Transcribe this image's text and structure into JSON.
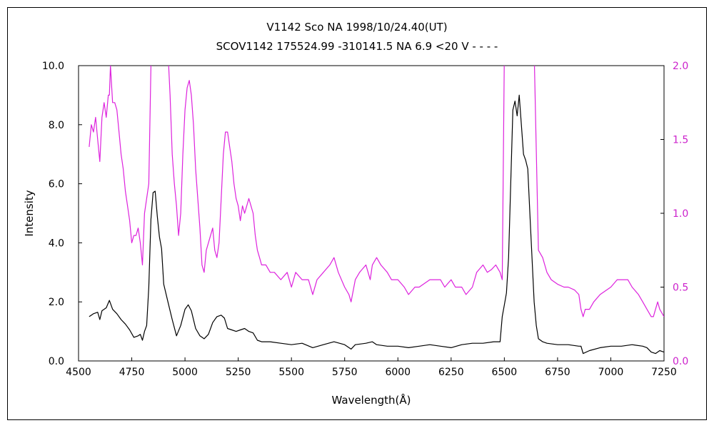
{
  "chart_data": {
    "type": "line",
    "title": "V1142 Sco     NA     1998/10/24.40(UT)",
    "subtitle": "SCOV1142 175524.99 -310141.5 NA 6.9 <20 V - - - -",
    "xlabel": "Wavelength(Å)",
    "ylabel": "Intensity",
    "xlim": [
      4500,
      7250
    ],
    "ylim_left": [
      0,
      10
    ],
    "ylim_right": [
      0,
      2
    ],
    "x_ticks": [
      "4500",
      "4750",
      "5000",
      "5250",
      "5500",
      "5750",
      "6000",
      "6250",
      "6500",
      "6750",
      "7000",
      "7250"
    ],
    "y_left_ticks": [
      "0.0",
      "2.0",
      "4.0",
      "6.0",
      "8.0",
      "10.0"
    ],
    "y_right_ticks": [
      "0.0",
      "0.5",
      "1.0",
      "1.5",
      "2.0"
    ],
    "grid": false,
    "legend": "none",
    "series": [
      {
        "axis": "left",
        "color": "#000000",
        "x": [
          4550,
          4570,
          4590,
          4600,
          4610,
          4630,
          4645,
          4660,
          4680,
          4700,
          4720,
          4740,
          4760,
          4780,
          4790,
          4800,
          4810,
          4820,
          4830,
          4840,
          4850,
          4860,
          4870,
          4880,
          4890,
          4900,
          4920,
          4940,
          4960,
          4980,
          5000,
          5015,
          5030,
          5050,
          5070,
          5090,
          5110,
          5130,
          5150,
          5170,
          5185,
          5200,
          5220,
          5240,
          5260,
          5280,
          5300,
          5320,
          5340,
          5360,
          5400,
          5450,
          5500,
          5550,
          5600,
          5650,
          5700,
          5750,
          5780,
          5800,
          5850,
          5880,
          5900,
          5950,
          6000,
          6050,
          6100,
          6150,
          6200,
          6250,
          6300,
          6350,
          6400,
          6450,
          6480,
          6490,
          6500,
          6510,
          6520,
          6530,
          6540,
          6550,
          6560,
          6570,
          6580,
          6590,
          6600,
          6610,
          6620,
          6630,
          6640,
          6650,
          6660,
          6680,
          6700,
          6750,
          6800,
          6850,
          6860,
          6870,
          6900,
          6950,
          7000,
          7050,
          7100,
          7150,
          7170,
          7190,
          7210,
          7230,
          7250
        ],
        "y": [
          1.5,
          1.6,
          1.65,
          1.4,
          1.7,
          1.8,
          2.05,
          1.75,
          1.6,
          1.4,
          1.25,
          1.05,
          0.8,
          0.85,
          0.9,
          0.7,
          1.0,
          1.2,
          2.5,
          4.8,
          5.7,
          5.75,
          4.9,
          4.2,
          3.8,
          2.6,
          2.0,
          1.4,
          0.85,
          1.2,
          1.75,
          1.9,
          1.7,
          1.1,
          0.85,
          0.75,
          0.9,
          1.3,
          1.5,
          1.55,
          1.45,
          1.1,
          1.05,
          1.0,
          1.05,
          1.1,
          1.0,
          0.95,
          0.7,
          0.65,
          0.65,
          0.6,
          0.55,
          0.6,
          0.45,
          0.55,
          0.65,
          0.55,
          0.4,
          0.55,
          0.6,
          0.65,
          0.55,
          0.5,
          0.5,
          0.45,
          0.5,
          0.55,
          0.5,
          0.45,
          0.55,
          0.6,
          0.6,
          0.65,
          0.65,
          1.5,
          1.9,
          2.3,
          3.5,
          6.0,
          8.5,
          8.8,
          8.3,
          9.0,
          8.0,
          7.0,
          6.8,
          6.5,
          5.0,
          3.5,
          2.0,
          1.2,
          0.75,
          0.65,
          0.6,
          0.55,
          0.55,
          0.5,
          0.5,
          0.25,
          0.35,
          0.45,
          0.5,
          0.5,
          0.55,
          0.5,
          0.45,
          0.3,
          0.25,
          0.35,
          0.3
        ]
      },
      {
        "axis": "right",
        "color": "#dd22dd",
        "x": [
          4550,
          4560,
          4570,
          4580,
          4590,
          4600,
          4610,
          4620,
          4630,
          4640,
          4645,
          4650,
          4660,
          4670,
          4680,
          4690,
          4700,
          4710,
          4720,
          4730,
          4740,
          4750,
          4760,
          4770,
          4780,
          4790,
          4800,
          4810,
          4820,
          4830,
          4840,
          4850,
          4860,
          4900,
          4920,
          4930,
          4940,
          4950,
          4960,
          4970,
          4980,
          4990,
          5000,
          5010,
          5020,
          5030,
          5040,
          5050,
          5060,
          5070,
          5080,
          5090,
          5100,
          5110,
          5120,
          5130,
          5140,
          5150,
          5160,
          5170,
          5180,
          5190,
          5200,
          5210,
          5220,
          5230,
          5240,
          5250,
          5260,
          5270,
          5280,
          5290,
          5300,
          5310,
          5320,
          5330,
          5340,
          5350,
          5360,
          5380,
          5400,
          5420,
          5450,
          5480,
          5500,
          5520,
          5550,
          5580,
          5600,
          5620,
          5650,
          5680,
          5700,
          5720,
          5750,
          5770,
          5780,
          5800,
          5820,
          5850,
          5870,
          5880,
          5900,
          5920,
          5950,
          5970,
          6000,
          6030,
          6050,
          6080,
          6100,
          6150,
          6180,
          6200,
          6220,
          6250,
          6270,
          6300,
          6320,
          6350,
          6370,
          6400,
          6420,
          6440,
          6460,
          6480,
          6490,
          6500,
          6640,
          6660,
          6680,
          6700,
          6720,
          6750,
          6780,
          6800,
          6830,
          6850,
          6860,
          6870,
          6880,
          6900,
          6920,
          6950,
          6980,
          7000,
          7030,
          7060,
          7080,
          7100,
          7130,
          7150,
          7170,
          7190,
          7200,
          7210,
          7220,
          7230,
          7250
        ],
        "y": [
          1.45,
          1.6,
          1.55,
          1.65,
          1.5,
          1.35,
          1.65,
          1.75,
          1.65,
          1.8,
          1.8,
          2.0,
          1.75,
          1.75,
          1.7,
          1.55,
          1.4,
          1.3,
          1.15,
          1.05,
          0.95,
          0.8,
          0.85,
          0.85,
          0.9,
          0.8,
          0.65,
          1.0,
          1.1,
          1.2,
          2.0,
          2.1,
          2.1,
          2.1,
          2.1,
          1.8,
          1.4,
          1.2,
          1.05,
          0.85,
          1.0,
          1.4,
          1.7,
          1.85,
          1.9,
          1.8,
          1.6,
          1.3,
          1.1,
          0.9,
          0.65,
          0.6,
          0.75,
          0.8,
          0.85,
          0.9,
          0.75,
          0.7,
          0.8,
          1.1,
          1.4,
          1.55,
          1.55,
          1.45,
          1.35,
          1.2,
          1.1,
          1.05,
          0.95,
          1.05,
          1.0,
          1.05,
          1.1,
          1.05,
          1.0,
          0.85,
          0.75,
          0.7,
          0.65,
          0.65,
          0.6,
          0.6,
          0.55,
          0.6,
          0.5,
          0.6,
          0.55,
          0.55,
          0.45,
          0.55,
          0.6,
          0.65,
          0.7,
          0.6,
          0.5,
          0.45,
          0.4,
          0.55,
          0.6,
          0.65,
          0.55,
          0.65,
          0.7,
          0.65,
          0.6,
          0.55,
          0.55,
          0.5,
          0.45,
          0.5,
          0.5,
          0.55,
          0.55,
          0.55,
          0.5,
          0.55,
          0.5,
          0.5,
          0.45,
          0.5,
          0.6,
          0.65,
          0.6,
          0.62,
          0.65,
          0.6,
          0.55,
          2.1,
          2.1,
          0.75,
          0.7,
          0.6,
          0.55,
          0.52,
          0.5,
          0.5,
          0.48,
          0.45,
          0.35,
          0.3,
          0.35,
          0.35,
          0.4,
          0.45,
          0.48,
          0.5,
          0.55,
          0.55,
          0.55,
          0.5,
          0.45,
          0.4,
          0.35,
          0.3,
          0.3,
          0.35,
          0.4,
          0.35,
          0.3
        ]
      }
    ]
  }
}
